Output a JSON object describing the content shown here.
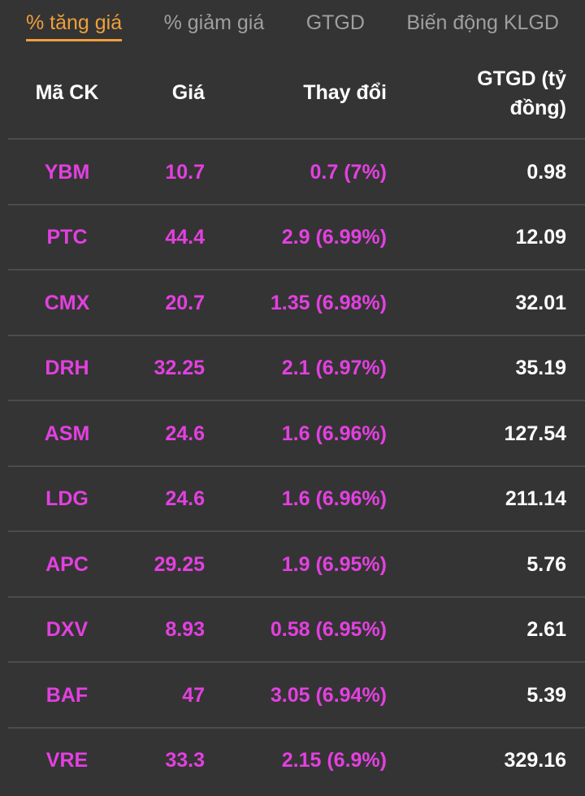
{
  "tabs": [
    {
      "label": "% tăng giá",
      "active": true
    },
    {
      "label": "% giảm giá",
      "active": false
    },
    {
      "label": "GTGD",
      "active": false
    },
    {
      "label": "Biến động KLGD",
      "active": false
    }
  ],
  "table": {
    "columns": [
      "Mã CK",
      "Giá",
      "Thay đổi",
      "GTGD (tỷ đồng)"
    ],
    "rows": [
      {
        "symbol": "YBM",
        "price": "10.7",
        "change": "0.7 (7%)",
        "value": "0.98"
      },
      {
        "symbol": "PTC",
        "price": "44.4",
        "change": "2.9 (6.99%)",
        "value": "12.09"
      },
      {
        "symbol": "CMX",
        "price": "20.7",
        "change": "1.35 (6.98%)",
        "value": "32.01"
      },
      {
        "symbol": "DRH",
        "price": "32.25",
        "change": "2.1 (6.97%)",
        "value": "35.19"
      },
      {
        "symbol": "ASM",
        "price": "24.6",
        "change": "1.6 (6.96%)",
        "value": "127.54"
      },
      {
        "symbol": "LDG",
        "price": "24.6",
        "change": "1.6 (6.96%)",
        "value": "211.14"
      },
      {
        "symbol": "APC",
        "price": "29.25",
        "change": "1.9 (6.95%)",
        "value": "5.76"
      },
      {
        "symbol": "DXV",
        "price": "8.93",
        "change": "0.58 (6.95%)",
        "value": "2.61"
      },
      {
        "symbol": "BAF",
        "price": "47",
        "change": "3.05 (6.94%)",
        "value": "5.39"
      },
      {
        "symbol": "VRE",
        "price": "33.3",
        "change": "2.15 (6.9%)",
        "value": "329.16"
      }
    ]
  },
  "colors": {
    "background": "#343434",
    "divider": "#4c4c4c",
    "ceiling": "#e340e0",
    "accent_orange": "#ee9f3a",
    "inactive_tab": "#9f9f9f",
    "text_white": "#ffffff"
  }
}
